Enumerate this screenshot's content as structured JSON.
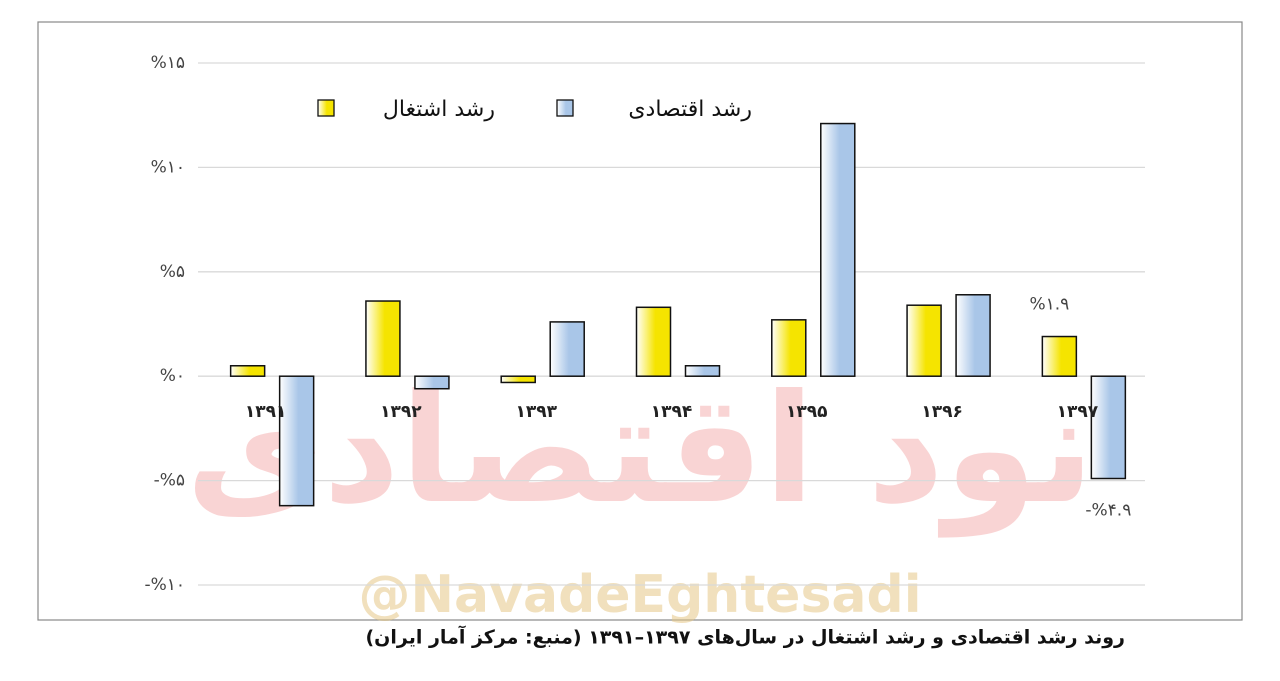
{
  "chart_data": {
    "type": "bar",
    "categories": [
      "۱۳۹۱",
      "۱۳۹۲",
      "۱۳۹۳",
      "۱۳۹۴",
      "۱۳۹۵",
      "۱۳۹۶",
      "۱۳۹۷"
    ],
    "series": [
      {
        "name": "رشد اشتغال",
        "color": "#f5e400",
        "values": [
          0.5,
          3.6,
          -0.3,
          3.3,
          2.7,
          3.4,
          1.9
        ],
        "value_labels": [
          null,
          null,
          null,
          null,
          null,
          null,
          "%۱.۹"
        ]
      },
      {
        "name": "رشد اقتصادی",
        "color": "#a9c6e8",
        "values": [
          -6.2,
          -0.6,
          2.6,
          0.5,
          12.1,
          3.9,
          -4.9
        ],
        "value_labels": [
          null,
          null,
          null,
          null,
          null,
          null,
          "-%۴.۹"
        ]
      }
    ],
    "ylim": [
      -10,
      15
    ],
    "yticks": [
      {
        "value": -10,
        "label": "-%۱۰"
      },
      {
        "value": -5,
        "label": "-%۵"
      },
      {
        "value": 0,
        "label": "%۰"
      },
      {
        "value": 5,
        "label": "%۵"
      },
      {
        "value": 10,
        "label": "%۱۰"
      },
      {
        "value": 15,
        "label": "%۱۵"
      }
    ],
    "grid": true,
    "caption": "روند رشد اقتصادی و رشد اشتغال در سال‌های ۱۳۹۷–۱۳۹۱ (منبع: مرکز آمار ایران)",
    "watermark": "@NavadeEghtesadi",
    "logo_text": "نود اقتصادی"
  }
}
